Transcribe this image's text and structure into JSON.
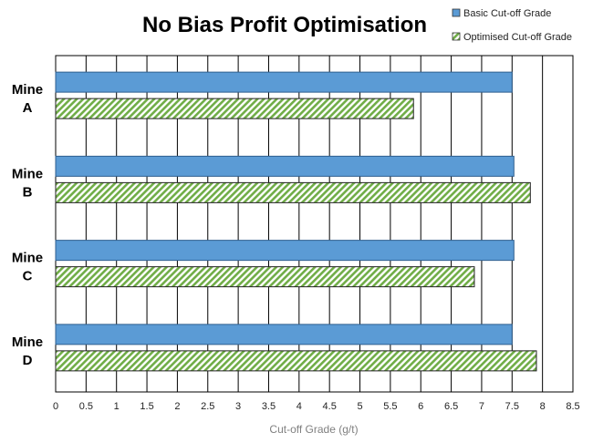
{
  "chart_data": {
    "type": "bar",
    "orientation": "horizontal",
    "title": "No Bias Profit Optimisation",
    "xlabel": "Cut-off Grade (g/t)",
    "ylabel": "",
    "categories": [
      [
        "Mine",
        "A"
      ],
      [
        "Mine",
        "B"
      ],
      [
        "Mine",
        "C"
      ],
      [
        "Mine",
        "D"
      ]
    ],
    "series": [
      {
        "name": "Basic Cut-off Grade",
        "values": [
          7.5,
          7.53,
          7.53,
          7.5
        ],
        "color": "#5b9bd5",
        "fill": "solid"
      },
      {
        "name": "Optimised Cut-off Grade",
        "values": [
          5.88,
          7.8,
          6.88,
          7.9
        ],
        "color": "#70ad47",
        "fill": "hatched"
      }
    ],
    "xlim": [
      0,
      8.5
    ],
    "xticks": [
      "0",
      "0.5",
      "1",
      "1.5",
      "2",
      "2.5",
      "3",
      "3.5",
      "4",
      "4.5",
      "5",
      "5.5",
      "6",
      "6.5",
      "7",
      "7.5",
      "8",
      "8.5"
    ],
    "grid": true,
    "legend_position": "top-right"
  }
}
